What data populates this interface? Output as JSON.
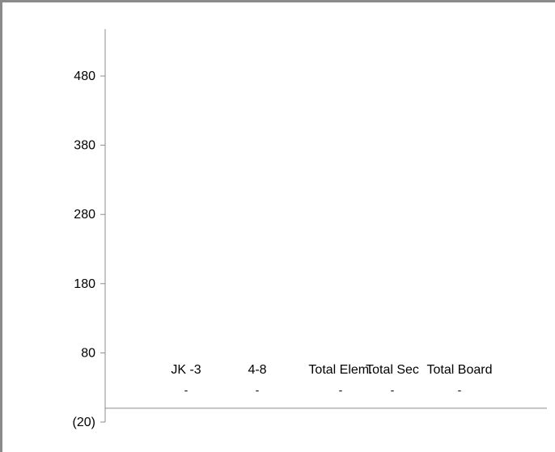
{
  "chart_data": {
    "type": "bar",
    "categories": [
      "JK -3",
      "4-8",
      "Total Elem.",
      "Total Sec",
      "Total Board"
    ],
    "values": [
      0,
      0,
      0,
      0,
      0
    ],
    "data_labels": [
      "-",
      "-",
      "-",
      "-",
      "-"
    ],
    "title": "",
    "xlabel": "",
    "ylabel": "",
    "ylim": [
      -20,
      520
    ],
    "yticks": [
      480,
      380,
      280,
      180,
      80,
      -20
    ],
    "ytick_labels": [
      "480",
      "380",
      "280",
      "180",
      "80",
      "(20)"
    ],
    "grid": false,
    "legend": "none"
  }
}
